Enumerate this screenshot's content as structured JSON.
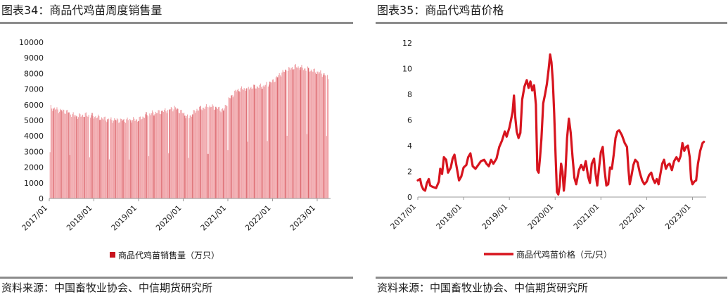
{
  "colors": {
    "bar": "#f0a3a8",
    "bar_dark": "#c8141e",
    "line": "#d7141e",
    "rule": "#8c8c8c"
  },
  "chart_data": [
    {
      "id": "sales",
      "type": "bar",
      "title": "图表34：商品代鸡苗周度销售量",
      "source": "资料来源：中国畜牧业协会、中信期货研究所",
      "ylim": [
        0,
        10000
      ],
      "yticks": [
        0,
        1000,
        2000,
        3000,
        4000,
        5000,
        6000,
        7000,
        8000,
        9000,
        10000
      ],
      "xticks": [
        "2017/01",
        "2018/01",
        "2019/01",
        "2020/01",
        "2021/01",
        "2022/01",
        "2023/01"
      ],
      "x_range": [
        2017.0,
        2023.3
      ],
      "legend": [
        {
          "name": "商品代鸡苗销售量（万只）"
        }
      ],
      "legend_placement": "bottom",
      "grid": false,
      "anchors": [
        [
          2017.0,
          5850
        ],
        [
          2017.2,
          5650
        ],
        [
          2017.4,
          5550
        ],
        [
          2017.6,
          5250
        ],
        [
          2017.8,
          5350
        ],
        [
          2018.0,
          5250
        ],
        [
          2018.3,
          5050
        ],
        [
          2018.6,
          5000
        ],
        [
          2019.0,
          5050
        ],
        [
          2019.2,
          5400
        ],
        [
          2019.5,
          5550
        ],
        [
          2019.8,
          5800
        ],
        [
          2020.0,
          5450
        ],
        [
          2020.1,
          5150
        ],
        [
          2020.3,
          5700
        ],
        [
          2020.6,
          5900
        ],
        [
          2020.9,
          5650
        ],
        [
          2021.0,
          6300
        ],
        [
          2021.2,
          6950
        ],
        [
          2021.5,
          7100
        ],
        [
          2021.8,
          7200
        ],
        [
          2022.0,
          7500
        ],
        [
          2022.2,
          8050
        ],
        [
          2022.5,
          8450
        ],
        [
          2022.8,
          8250
        ],
        [
          2023.0,
          8100
        ],
        [
          2023.25,
          7800
        ]
      ]
    },
    {
      "id": "price",
      "type": "line",
      "title": "图表35：商品代鸡苗价格",
      "source": "资料来源：中国畜牧业协会、中信期货研究所",
      "ylim": [
        0,
        12
      ],
      "yticks": [
        0,
        2,
        4,
        6,
        8,
        10,
        12
      ],
      "xticks": [
        "2017/01",
        "2018/01",
        "2019/01",
        "2020/01",
        "2021/01",
        "2022/01",
        "2023/01"
      ],
      "x_range": [
        2017.0,
        2023.3
      ],
      "legend": [
        {
          "name": "商品代鸡苗价格（元/只）"
        }
      ],
      "legend_placement": "bottom",
      "grid": false,
      "points": [
        [
          2017.0,
          1.3
        ],
        [
          2017.05,
          1.4
        ],
        [
          2017.08,
          0.9
        ],
        [
          2017.12,
          0.6
        ],
        [
          2017.16,
          0.5
        ],
        [
          2017.2,
          1.1
        ],
        [
          2017.24,
          1.4
        ],
        [
          2017.27,
          0.9
        ],
        [
          2017.32,
          0.8
        ],
        [
          2017.4,
          0.7
        ],
        [
          2017.46,
          1.2
        ],
        [
          2017.49,
          2.2
        ],
        [
          2017.53,
          1.8
        ],
        [
          2017.57,
          3.1
        ],
        [
          2017.62,
          2.9
        ],
        [
          2017.66,
          1.9
        ],
        [
          2017.72,
          2.3
        ],
        [
          2017.76,
          3.0
        ],
        [
          2017.8,
          3.3
        ],
        [
          2017.84,
          2.5
        ],
        [
          2017.9,
          1.3
        ],
        [
          2017.95,
          1.6
        ],
        [
          2018.0,
          2.3
        ],
        [
          2018.06,
          2.5
        ],
        [
          2018.1,
          3.1
        ],
        [
          2018.15,
          3.4
        ],
        [
          2018.2,
          2.4
        ],
        [
          2018.26,
          2.2
        ],
        [
          2018.32,
          2.5
        ],
        [
          2018.38,
          2.8
        ],
        [
          2018.45,
          2.9
        ],
        [
          2018.5,
          2.6
        ],
        [
          2018.55,
          2.4
        ],
        [
          2018.6,
          2.9
        ],
        [
          2018.65,
          2.6
        ],
        [
          2018.72,
          3.0
        ],
        [
          2018.78,
          3.9
        ],
        [
          2018.84,
          4.4
        ],
        [
          2018.9,
          5.1
        ],
        [
          2018.94,
          4.7
        ],
        [
          2019.0,
          5.4
        ],
        [
          2019.03,
          5.9
        ],
        [
          2019.07,
          6.6
        ],
        [
          2019.1,
          7.9
        ],
        [
          2019.13,
          6.2
        ],
        [
          2019.16,
          5.1
        ],
        [
          2019.2,
          4.6
        ],
        [
          2019.24,
          5.0
        ],
        [
          2019.28,
          7.6
        ],
        [
          2019.33,
          8.6
        ],
        [
          2019.38,
          9.1
        ],
        [
          2019.42,
          8.5
        ],
        [
          2019.46,
          9.0
        ],
        [
          2019.5,
          8.3
        ],
        [
          2019.54,
          8.7
        ],
        [
          2019.58,
          7.2
        ],
        [
          2019.61,
          2.1
        ],
        [
          2019.64,
          1.9
        ],
        [
          2019.67,
          3.1
        ],
        [
          2019.7,
          4.5
        ],
        [
          2019.74,
          7.3
        ],
        [
          2019.78,
          8.0
        ],
        [
          2019.82,
          8.8
        ],
        [
          2019.86,
          10.0
        ],
        [
          2019.89,
          11.1
        ],
        [
          2019.92,
          10.5
        ],
        [
          2019.95,
          9.0
        ],
        [
          2019.98,
          6.5
        ],
        [
          2020.01,
          3.2
        ],
        [
          2020.04,
          0.4
        ],
        [
          2020.07,
          0.2
        ],
        [
          2020.1,
          0.9
        ],
        [
          2020.13,
          2.6
        ],
        [
          2020.16,
          2.0
        ],
        [
          2020.19,
          0.5
        ],
        [
          2020.22,
          1.6
        ],
        [
          2020.26,
          4.6
        ],
        [
          2020.3,
          6.1
        ],
        [
          2020.34,
          5.0
        ],
        [
          2020.38,
          3.1
        ],
        [
          2020.42,
          1.5
        ],
        [
          2020.46,
          1.0
        ],
        [
          2020.52,
          2.1
        ],
        [
          2020.57,
          2.5
        ],
        [
          2020.62,
          2.1
        ],
        [
          2020.67,
          2.8
        ],
        [
          2020.72,
          1.6
        ],
        [
          2020.76,
          1.1
        ],
        [
          2020.8,
          2.6
        ],
        [
          2020.85,
          3.0
        ],
        [
          2020.88,
          1.9
        ],
        [
          2020.92,
          0.9
        ],
        [
          2020.96,
          2.3
        ],
        [
          2021.0,
          3.5
        ],
        [
          2021.04,
          3.9
        ],
        [
          2021.08,
          2.1
        ],
        [
          2021.12,
          0.9
        ],
        [
          2021.16,
          1.0
        ],
        [
          2021.2,
          2.3
        ],
        [
          2021.24,
          2.2
        ],
        [
          2021.28,
          3.3
        ],
        [
          2021.32,
          4.6
        ],
        [
          2021.36,
          5.1
        ],
        [
          2021.4,
          5.2
        ],
        [
          2021.46,
          4.8
        ],
        [
          2021.52,
          4.2
        ],
        [
          2021.57,
          3.9
        ],
        [
          2021.6,
          2.2
        ],
        [
          2021.63,
          1.0
        ],
        [
          2021.67,
          1.7
        ],
        [
          2021.71,
          2.5
        ],
        [
          2021.75,
          2.9
        ],
        [
          2021.8,
          2.7
        ],
        [
          2021.85,
          1.9
        ],
        [
          2021.9,
          1.3
        ],
        [
          2021.95,
          1.0
        ],
        [
          2022.0,
          1.2
        ],
        [
          2022.05,
          1.7
        ],
        [
          2022.1,
          1.9
        ],
        [
          2022.14,
          1.4
        ],
        [
          2022.18,
          1.1
        ],
        [
          2022.22,
          1.4
        ],
        [
          2022.26,
          1.0
        ],
        [
          2022.3,
          1.8
        ],
        [
          2022.34,
          2.6
        ],
        [
          2022.38,
          2.9
        ],
        [
          2022.42,
          2.2
        ],
        [
          2022.46,
          2.5
        ],
        [
          2022.5,
          2.6
        ],
        [
          2022.55,
          2.1
        ],
        [
          2022.6,
          2.8
        ],
        [
          2022.65,
          3.1
        ],
        [
          2022.7,
          2.8
        ],
        [
          2022.74,
          3.2
        ],
        [
          2022.78,
          4.2
        ],
        [
          2022.82,
          3.6
        ],
        [
          2022.86,
          3.9
        ],
        [
          2022.9,
          4.0
        ],
        [
          2022.94,
          3.1
        ],
        [
          2022.97,
          1.4
        ],
        [
          2023.0,
          1.0
        ],
        [
          2023.04,
          1.2
        ],
        [
          2023.08,
          1.3
        ],
        [
          2023.12,
          2.6
        ],
        [
          2023.17,
          3.6
        ],
        [
          2023.22,
          4.2
        ],
        [
          2023.25,
          4.3
        ]
      ]
    }
  ]
}
